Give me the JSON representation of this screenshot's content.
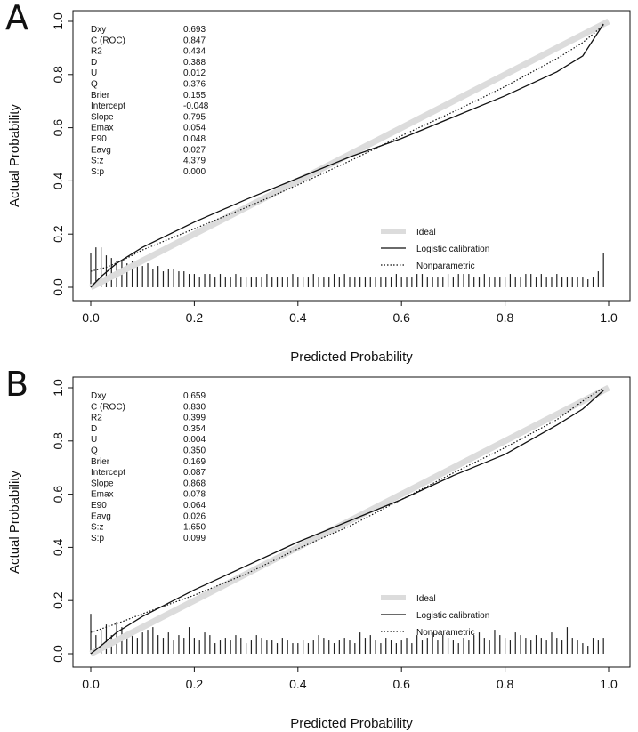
{
  "chart_data": [
    {
      "panel_label": "A",
      "type": "line",
      "xlabel": "Predicted Probability",
      "ylabel": "Actual Probability",
      "xlim": [
        0,
        1
      ],
      "ylim": [
        0,
        1
      ],
      "x_ticks": [
        "0.0",
        "0.2",
        "0.4",
        "0.6",
        "0.8",
        "1.0"
      ],
      "y_ticks": [
        "0.0",
        "0.2",
        "0.4",
        "0.6",
        "0.8",
        "1.0"
      ],
      "stats": [
        {
          "name": "Dxy",
          "value": "0.693"
        },
        {
          "name": "C (ROC)",
          "value": "0.847"
        },
        {
          "name": "R2",
          "value": "0.434"
        },
        {
          "name": "D",
          "value": "0.388"
        },
        {
          "name": "U",
          "value": "0.012"
        },
        {
          "name": "Q",
          "value": "0.376"
        },
        {
          "name": "Brier",
          "value": "0.155"
        },
        {
          "name": "Intercept",
          "value": "-0.048"
        },
        {
          "name": "Slope",
          "value": "0.795"
        },
        {
          "name": "Emax",
          "value": "0.054"
        },
        {
          "name": "E90",
          "value": "0.048"
        },
        {
          "name": "Eavg",
          "value": "0.027"
        },
        {
          "name": "S:z",
          "value": "4.379"
        },
        {
          "name": "S:p",
          "value": "0.000"
        }
      ],
      "legend": [
        "Ideal",
        "Logistic calibration",
        "Nonparametric"
      ],
      "series": [
        {
          "name": "Ideal",
          "x": [
            0,
            1
          ],
          "y": [
            0,
            1
          ]
        },
        {
          "name": "Logistic calibration",
          "x": [
            0.0,
            0.02,
            0.05,
            0.1,
            0.2,
            0.3,
            0.4,
            0.5,
            0.6,
            0.7,
            0.8,
            0.9,
            0.95,
            0.99
          ],
          "y": [
            0.0,
            0.04,
            0.09,
            0.15,
            0.245,
            0.33,
            0.41,
            0.49,
            0.56,
            0.64,
            0.72,
            0.81,
            0.87,
            0.99
          ]
        },
        {
          "name": "Nonparametric",
          "x": [
            0.0,
            0.03,
            0.06,
            0.1,
            0.2,
            0.3,
            0.4,
            0.5,
            0.6,
            0.7,
            0.8,
            0.9,
            0.95,
            0.99
          ],
          "y": [
            0.06,
            0.075,
            0.1,
            0.14,
            0.22,
            0.3,
            0.385,
            0.475,
            0.57,
            0.66,
            0.755,
            0.86,
            0.92,
            0.985
          ]
        }
      ],
      "histogram": {
        "x": [
          0.0,
          0.01,
          0.02,
          0.03,
          0.04,
          0.05,
          0.06,
          0.07,
          0.08,
          0.09,
          0.1,
          0.11,
          0.12,
          0.13,
          0.14,
          0.15,
          0.16,
          0.17,
          0.18,
          0.19,
          0.2,
          0.21,
          0.22,
          0.23,
          0.24,
          0.25,
          0.26,
          0.27,
          0.28,
          0.29,
          0.3,
          0.31,
          0.32,
          0.33,
          0.34,
          0.35,
          0.36,
          0.37,
          0.38,
          0.39,
          0.4,
          0.41,
          0.42,
          0.43,
          0.44,
          0.45,
          0.46,
          0.47,
          0.48,
          0.49,
          0.5,
          0.51,
          0.52,
          0.53,
          0.54,
          0.55,
          0.56,
          0.57,
          0.58,
          0.59,
          0.6,
          0.61,
          0.62,
          0.63,
          0.64,
          0.65,
          0.66,
          0.67,
          0.68,
          0.69,
          0.7,
          0.71,
          0.72,
          0.73,
          0.74,
          0.75,
          0.76,
          0.77,
          0.78,
          0.79,
          0.8,
          0.81,
          0.82,
          0.83,
          0.84,
          0.85,
          0.86,
          0.87,
          0.88,
          0.89,
          0.9,
          0.91,
          0.92,
          0.93,
          0.94,
          0.95,
          0.96,
          0.97,
          0.98,
          0.99
        ],
        "height": [
          0.13,
          0.15,
          0.15,
          0.12,
          0.11,
          0.1,
          0.1,
          0.09,
          0.1,
          0.09,
          0.08,
          0.09,
          0.07,
          0.08,
          0.06,
          0.07,
          0.07,
          0.06,
          0.06,
          0.05,
          0.05,
          0.04,
          0.05,
          0.05,
          0.04,
          0.05,
          0.04,
          0.04,
          0.05,
          0.04,
          0.04,
          0.04,
          0.04,
          0.04,
          0.05,
          0.04,
          0.04,
          0.04,
          0.04,
          0.05,
          0.04,
          0.04,
          0.04,
          0.05,
          0.04,
          0.04,
          0.04,
          0.05,
          0.04,
          0.05,
          0.04,
          0.04,
          0.04,
          0.04,
          0.04,
          0.04,
          0.04,
          0.04,
          0.04,
          0.05,
          0.04,
          0.04,
          0.04,
          0.05,
          0.05,
          0.04,
          0.04,
          0.04,
          0.04,
          0.05,
          0.04,
          0.05,
          0.05,
          0.05,
          0.04,
          0.04,
          0.05,
          0.04,
          0.04,
          0.04,
          0.04,
          0.05,
          0.04,
          0.04,
          0.05,
          0.05,
          0.04,
          0.05,
          0.04,
          0.04,
          0.05,
          0.04,
          0.04,
          0.04,
          0.04,
          0.04,
          0.03,
          0.04,
          0.06,
          0.13
        ]
      }
    },
    {
      "panel_label": "B",
      "type": "line",
      "xlabel": "Predicted Probability",
      "ylabel": "Actual Probability",
      "xlim": [
        0,
        1
      ],
      "ylim": [
        0,
        1
      ],
      "x_ticks": [
        "0.0",
        "0.2",
        "0.4",
        "0.6",
        "0.8",
        "1.0"
      ],
      "y_ticks": [
        "0.0",
        "0.2",
        "0.4",
        "0.6",
        "0.8",
        "1.0"
      ],
      "stats": [
        {
          "name": "Dxy",
          "value": "0.659"
        },
        {
          "name": "C (ROC)",
          "value": "0.830"
        },
        {
          "name": "R2",
          "value": "0.399"
        },
        {
          "name": "D",
          "value": "0.354"
        },
        {
          "name": "U",
          "value": "0.004"
        },
        {
          "name": "Q",
          "value": "0.350"
        },
        {
          "name": "Brier",
          "value": "0.169"
        },
        {
          "name": "Intercept",
          "value": "0.087"
        },
        {
          "name": "Slope",
          "value": "0.868"
        },
        {
          "name": "Emax",
          "value": "0.078"
        },
        {
          "name": "E90",
          "value": "0.064"
        },
        {
          "name": "Eavg",
          "value": "0.026"
        },
        {
          "name": "S:z",
          "value": "1.650"
        },
        {
          "name": "S:p",
          "value": "0.099"
        }
      ],
      "legend": [
        "Ideal",
        "Logistic calibration",
        "Nonparametric"
      ],
      "series": [
        {
          "name": "Ideal",
          "x": [
            0,
            1
          ],
          "y": [
            0,
            1
          ]
        },
        {
          "name": "Logistic calibration",
          "x": [
            0.0,
            0.02,
            0.05,
            0.1,
            0.2,
            0.3,
            0.4,
            0.5,
            0.6,
            0.7,
            0.8,
            0.9,
            0.95,
            0.99
          ],
          "y": [
            0.0,
            0.03,
            0.08,
            0.14,
            0.24,
            0.33,
            0.42,
            0.5,
            0.58,
            0.67,
            0.75,
            0.86,
            0.92,
            0.99
          ]
        },
        {
          "name": "Nonparametric",
          "x": [
            0.0,
            0.03,
            0.06,
            0.1,
            0.2,
            0.3,
            0.4,
            0.5,
            0.6,
            0.7,
            0.8,
            0.9,
            0.95,
            0.99
          ],
          "y": [
            0.08,
            0.1,
            0.12,
            0.15,
            0.22,
            0.3,
            0.395,
            0.48,
            0.58,
            0.68,
            0.775,
            0.88,
            0.95,
            1.0
          ]
        }
      ],
      "histogram": {
        "x": [
          0.0,
          0.01,
          0.02,
          0.03,
          0.04,
          0.05,
          0.06,
          0.07,
          0.08,
          0.09,
          0.1,
          0.11,
          0.12,
          0.13,
          0.14,
          0.15,
          0.16,
          0.17,
          0.18,
          0.19,
          0.2,
          0.21,
          0.22,
          0.23,
          0.24,
          0.25,
          0.26,
          0.27,
          0.28,
          0.29,
          0.3,
          0.31,
          0.32,
          0.33,
          0.34,
          0.35,
          0.36,
          0.37,
          0.38,
          0.39,
          0.4,
          0.41,
          0.42,
          0.43,
          0.44,
          0.45,
          0.46,
          0.47,
          0.48,
          0.49,
          0.5,
          0.51,
          0.52,
          0.53,
          0.54,
          0.55,
          0.56,
          0.57,
          0.58,
          0.59,
          0.6,
          0.61,
          0.62,
          0.63,
          0.64,
          0.65,
          0.66,
          0.67,
          0.68,
          0.69,
          0.7,
          0.71,
          0.72,
          0.73,
          0.74,
          0.75,
          0.76,
          0.77,
          0.78,
          0.79,
          0.8,
          0.81,
          0.82,
          0.83,
          0.84,
          0.85,
          0.86,
          0.87,
          0.88,
          0.89,
          0.9,
          0.91,
          0.92,
          0.93,
          0.94,
          0.95,
          0.96,
          0.97,
          0.98,
          0.99
        ],
        "height": [
          0.15,
          0.07,
          0.09,
          0.11,
          0.07,
          0.12,
          0.1,
          0.08,
          0.07,
          0.06,
          0.08,
          0.09,
          0.1,
          0.07,
          0.06,
          0.08,
          0.05,
          0.07,
          0.06,
          0.1,
          0.06,
          0.05,
          0.08,
          0.07,
          0.04,
          0.05,
          0.06,
          0.05,
          0.07,
          0.06,
          0.04,
          0.05,
          0.07,
          0.06,
          0.05,
          0.05,
          0.04,
          0.06,
          0.05,
          0.04,
          0.04,
          0.05,
          0.04,
          0.05,
          0.07,
          0.06,
          0.05,
          0.04,
          0.05,
          0.06,
          0.05,
          0.04,
          0.08,
          0.06,
          0.07,
          0.05,
          0.04,
          0.06,
          0.05,
          0.04,
          0.05,
          0.06,
          0.04,
          0.07,
          0.05,
          0.06,
          0.08,
          0.05,
          0.07,
          0.06,
          0.05,
          0.04,
          0.06,
          0.05,
          0.07,
          0.08,
          0.06,
          0.05,
          0.09,
          0.07,
          0.06,
          0.05,
          0.08,
          0.07,
          0.06,
          0.05,
          0.07,
          0.06,
          0.05,
          0.08,
          0.06,
          0.05,
          0.1,
          0.06,
          0.05,
          0.04,
          0.03,
          0.06,
          0.05,
          0.06
        ]
      }
    }
  ]
}
